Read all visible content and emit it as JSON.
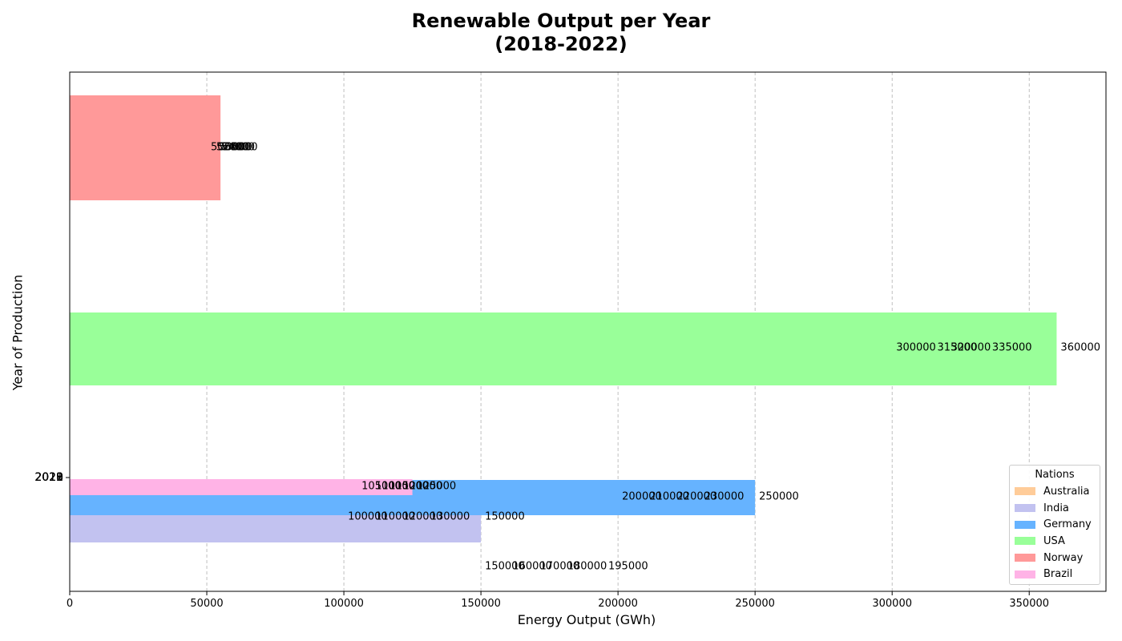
{
  "chart_data": {
    "type": "bar",
    "orientation": "horizontal",
    "title_lines": [
      "Renewable Output per Year",
      "(2018-2022)"
    ],
    "xlabel": "Energy Output (GWh)",
    "ylabel": "Year of Production",
    "xlim": [
      0,
      378000
    ],
    "x_ticks": [
      0,
      50000,
      100000,
      150000,
      200000,
      250000,
      300000,
      350000
    ],
    "y_tick_labels": [
      "2018",
      "2019",
      "2020",
      "2021",
      "2022"
    ],
    "grid": "x-dashed",
    "legend_title": "Nations",
    "legend_position": "lower-right",
    "series": [
      {
        "name": "Australia",
        "color": "#ffcc99",
        "values": [
          150000,
          160000,
          170000,
          180000,
          195000
        ]
      },
      {
        "name": "India",
        "color": "#c2c2f0",
        "values": [
          100000,
          110000,
          120000,
          130000,
          150000
        ]
      },
      {
        "name": "Germany",
        "color": "#66b3ff",
        "values": [
          200000,
          210000,
          220000,
          230000,
          250000
        ]
      },
      {
        "name": "USA",
        "color": "#99ff99",
        "values": [
          300000,
          315000,
          320000,
          335000,
          360000
        ]
      },
      {
        "name": "Norway",
        "color": "#ff9999",
        "values": [
          50000,
          52000,
          53000,
          54000,
          55000
        ]
      },
      {
        "name": "Brazil",
        "color": "#ffb3e6",
        "values": [
          105000,
          110000,
          115000,
          120000,
          125000
        ]
      }
    ]
  }
}
